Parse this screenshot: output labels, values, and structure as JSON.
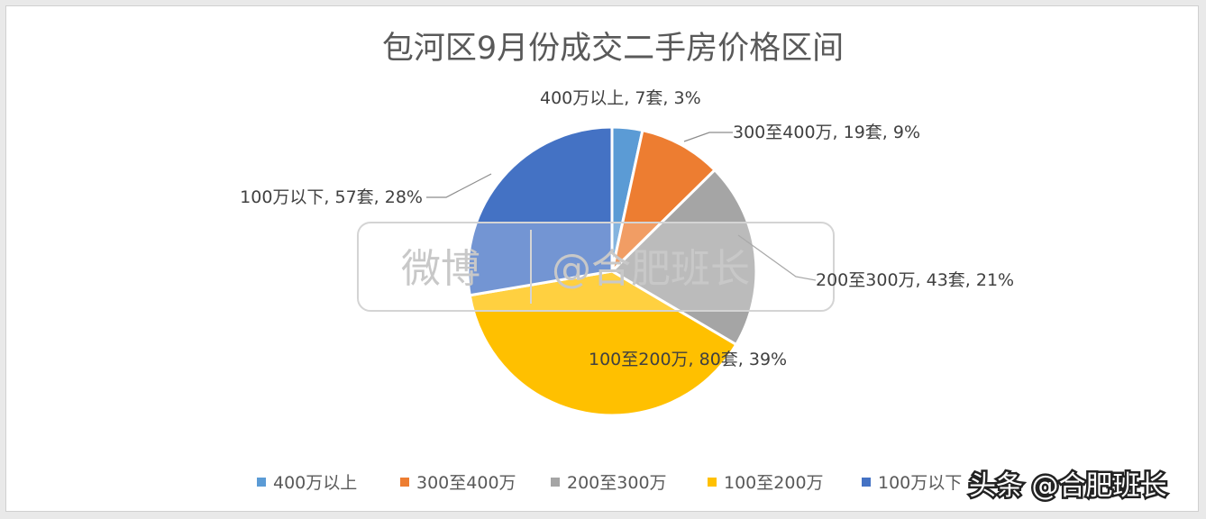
{
  "chart_data": {
    "type": "pie",
    "title": "包河区9月份成交二手房价格区间",
    "slices": [
      {
        "name": "400万以上",
        "count": 7,
        "count_text": "7套",
        "percent_text": "3%",
        "color": "#5b9bd5"
      },
      {
        "name": "300至400万",
        "count": 19,
        "count_text": "19套",
        "percent_text": "9%",
        "color": "#ed7d31"
      },
      {
        "name": "200至300万",
        "count": 43,
        "count_text": "43套",
        "percent_text": "21%",
        "color": "#a5a5a5"
      },
      {
        "name": "100至200万",
        "count": 80,
        "count_text": "80套",
        "percent_text": "39%",
        "color": "#ffc000"
      },
      {
        "name": "100万以下",
        "count": 57,
        "count_text": "57套",
        "percent_text": "28%",
        "color": "#4472c4"
      }
    ],
    "legend_position": "bottom",
    "legend": [
      "400万以上",
      "300至400万",
      "200至300万",
      "100至200万",
      "100万以下"
    ]
  },
  "watermark": {
    "weibo": "微博",
    "handle": "@合肥班长"
  },
  "corner_watermark": {
    "text": "头条 @合肥班长"
  }
}
